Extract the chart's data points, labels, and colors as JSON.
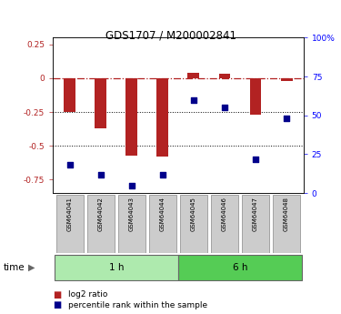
{
  "title": "GDS1707 / M200002841",
  "samples": [
    "GSM64041",
    "GSM64042",
    "GSM64043",
    "GSM64044",
    "GSM64045",
    "GSM64046",
    "GSM64047",
    "GSM64048"
  ],
  "log2_ratio": [
    -0.25,
    -0.37,
    -0.57,
    -0.58,
    0.04,
    0.03,
    -0.27,
    -0.02
  ],
  "percentile_rank": [
    18,
    12,
    5,
    12,
    60,
    55,
    22,
    48
  ],
  "bar_color": "#b22222",
  "dot_color": "#00008b",
  "bar_width": 0.38,
  "ylim_left": [
    -0.85,
    0.3
  ],
  "ylim_right": [
    0,
    100
  ],
  "yticks_left": [
    0.25,
    0,
    -0.25,
    -0.5,
    -0.75
  ],
  "yticks_right": [
    100,
    75,
    50,
    25,
    0
  ],
  "group1_label": "1 h",
  "group2_label": "6 h",
  "group1_color": "#aeeaae",
  "group2_color": "#55cc55",
  "dotted_lines": [
    -0.25,
    -0.5
  ],
  "legend_log2": "log2 ratio",
  "legend_pct": "percentile rank within the sample",
  "time_label": "time",
  "background_color": "#ffffff"
}
